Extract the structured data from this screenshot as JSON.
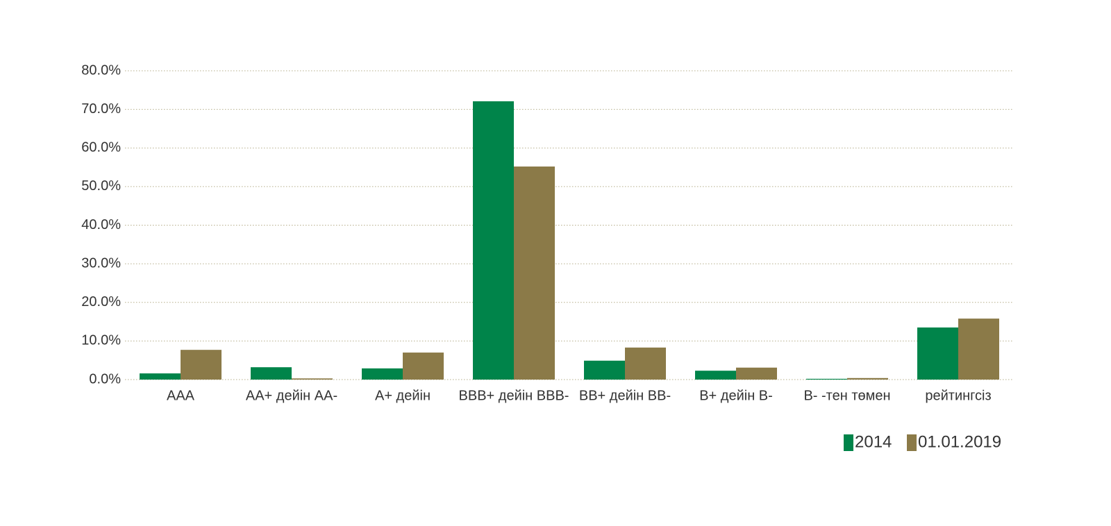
{
  "chart_data": {
    "type": "bar",
    "categories": [
      "AAA",
      "AA+ дейін AA-",
      "A+ дейін",
      "BBB+ дейін BBB-",
      "BB+ дейін BB-",
      "B+ дейін B-",
      "B- -тен төмен",
      "рейтингсіз"
    ],
    "series": [
      {
        "name": "2014",
        "color": "#00844a",
        "values": [
          1.6,
          3.2,
          2.9,
          72.1,
          4.9,
          2.3,
          0.2,
          13.5
        ]
      },
      {
        "name": "01.01.2019",
        "color": "#8b7a48",
        "values": [
          7.7,
          0.3,
          7.0,
          55.2,
          8.3,
          3.1,
          0.4,
          15.8
        ]
      }
    ],
    "ylim": [
      0,
      80
    ],
    "yticks": [
      {
        "value": 0,
        "label": "0.0%"
      },
      {
        "value": 10,
        "label": "10.0%"
      },
      {
        "value": 20,
        "label": "20.0%"
      },
      {
        "value": 30,
        "label": "30.0%"
      },
      {
        "value": 40,
        "label": "40.0%"
      },
      {
        "value": 50,
        "label": "50.0%"
      },
      {
        "value": 60,
        "label": "60.0%"
      },
      {
        "value": 70,
        "label": "70.0%"
      },
      {
        "value": 80,
        "label": "80.0%"
      }
    ],
    "grid": true,
    "legend": "bottom-right"
  }
}
